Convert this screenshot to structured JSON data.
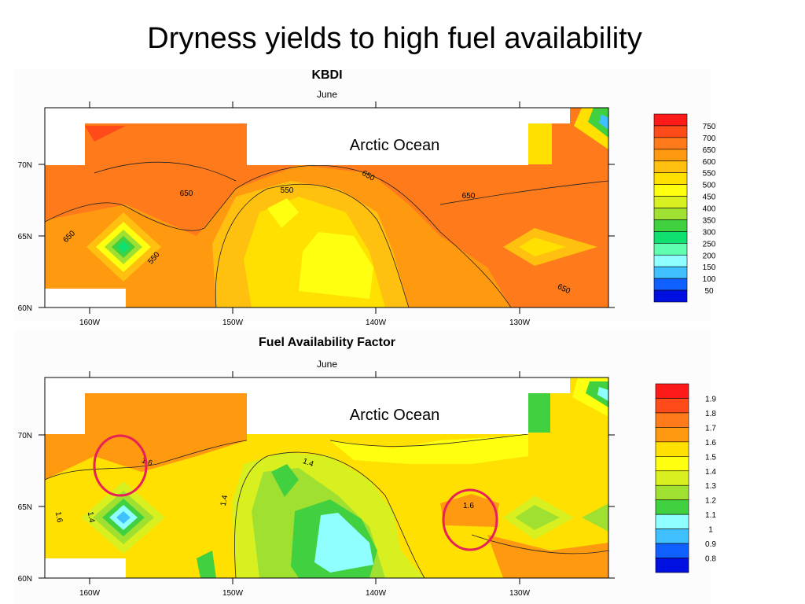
{
  "slide": {
    "title": "Dryness yields to high fuel availability"
  },
  "chart_data": [
    {
      "type": "heatmap",
      "title": "KBDI",
      "subtitle": "June",
      "annotation": "Arctic Ocean",
      "x_tick_labels": [
        "160W",
        "150W",
        "140W",
        "130W"
      ],
      "y_tick_labels": [
        "60N",
        "65N",
        "70N"
      ],
      "xlim": [
        -163,
        -124.5
      ],
      "ylim": [
        60,
        73.5
      ],
      "contour_labels": [
        "650",
        "550",
        "650",
        "650",
        "650",
        "650",
        "550",
        "650"
      ],
      "colorbar": {
        "levels": [
          "750",
          "700",
          "650",
          "600",
          "550",
          "500",
          "450",
          "400",
          "350",
          "300",
          "250",
          "200",
          "150",
          "100",
          "50"
        ],
        "colors": [
          "#ff1a1a",
          "#ff4a1a",
          "#ff7a1a",
          "#ff9a10",
          "#ffc010",
          "#ffe000",
          "#ffff10",
          "#d8f020",
          "#a0e030",
          "#40d040",
          "#10e070",
          "#60ffb0",
          "#90ffff",
          "#40c0ff",
          "#1060ff",
          "#0010e0"
        ]
      }
    },
    {
      "type": "heatmap",
      "title": "Fuel Availability Factor",
      "subtitle": "June",
      "annotation": "Arctic Ocean",
      "x_tick_labels": [
        "160W",
        "150W",
        "140W",
        "130W"
      ],
      "y_tick_labels": [
        "60N",
        "65N",
        "70N"
      ],
      "xlim": [
        -163,
        -124.5
      ],
      "ylim": [
        60,
        73.5
      ],
      "contour_labels": [
        "1.6",
        "1.4",
        "1.4",
        "1.6",
        "1.4",
        "1.6"
      ],
      "colorbar": {
        "levels": [
          "1.9",
          "1.8",
          "1.7",
          "1.6",
          "1.5",
          "1.4",
          "1.3",
          "1.2",
          "1.1",
          "1",
          "0.9",
          "0.8"
        ],
        "colors": [
          "#ff1a1a",
          "#ff4a1a",
          "#ff7a1a",
          "#ff9a10",
          "#ffe000",
          "#ffff10",
          "#d8f020",
          "#a0e030",
          "#40d040",
          "#90ffff",
          "#40c0ff",
          "#1060ff",
          "#0010e0"
        ]
      }
    }
  ]
}
